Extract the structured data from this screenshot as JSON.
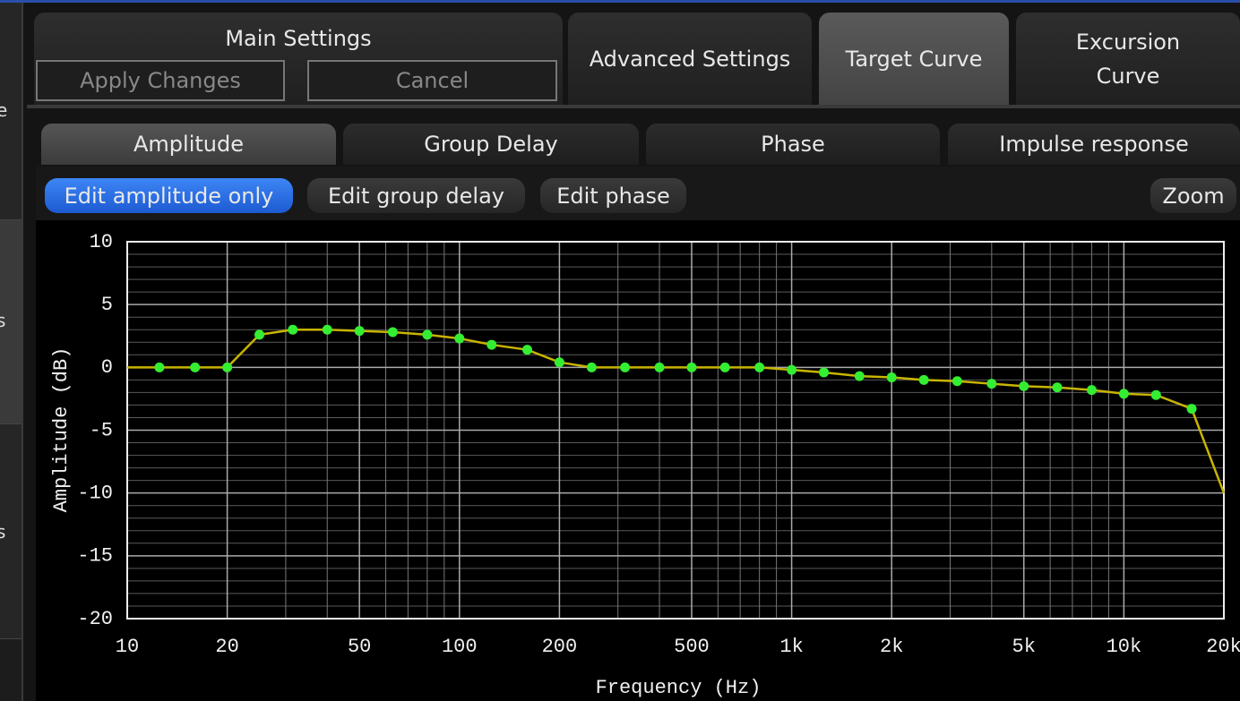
{
  "sidebar": {
    "labels": [
      "e",
      "s",
      "s"
    ]
  },
  "tabs": [
    {
      "label": "Main Settings",
      "buttons": [
        "Apply Changes",
        "Cancel"
      ]
    },
    {
      "label": "Advanced Settings"
    },
    {
      "label": "Target Curve",
      "active": true
    },
    {
      "label": "Excursion Curve"
    }
  ],
  "subtabs": [
    {
      "label": "Amplitude",
      "active": true
    },
    {
      "label": "Group Delay"
    },
    {
      "label": "Phase"
    },
    {
      "label": "Impulse response"
    }
  ],
  "toolbar": [
    {
      "label": "Edit amplitude only",
      "active": true
    },
    {
      "label": "Edit group delay"
    },
    {
      "label": "Edit phase"
    },
    {
      "label": "Zoom"
    }
  ],
  "chart_data": {
    "type": "line",
    "x_label": "Frequency (Hz)",
    "y_label": "Amplitude (dB)",
    "xscale": "log",
    "grid": true,
    "xlim": [
      10,
      20000
    ],
    "ylim": [
      -20,
      10
    ],
    "xticks": [
      10,
      20,
      50,
      100,
      200,
      500,
      {
        "value": 1000,
        "label": "1k"
      },
      {
        "value": 2000,
        "label": "2k"
      },
      {
        "value": 5000,
        "label": "5k"
      },
      {
        "value": 10000,
        "label": "10k"
      },
      {
        "value": 20000,
        "label": "20k"
      }
    ],
    "yticks": [
      -20,
      -15,
      -10,
      -5,
      0,
      5,
      10
    ],
    "xminorticks": [
      30,
      40,
      60,
      70,
      80,
      90,
      300,
      400,
      600,
      700,
      800,
      900,
      3000,
      4000,
      6000,
      7000,
      8000,
      9000
    ],
    "yminorticks": [
      -19,
      -18,
      -17,
      -16,
      -14,
      -13,
      -12,
      -11,
      -9,
      -8,
      -7,
      -6,
      -4,
      -3,
      -2,
      -1,
      1,
      2,
      3,
      4,
      6,
      7,
      8,
      9
    ],
    "series": [
      {
        "color": "#c8b400",
        "style": "line",
        "x": [
          10,
          12.5,
          16,
          20,
          25,
          31.5,
          40,
          50,
          63,
          80,
          100,
          125,
          160,
          200,
          250,
          315,
          400,
          500,
          630,
          800,
          1000,
          1250,
          1600,
          2000,
          2500,
          3150,
          4000,
          5000,
          6300,
          8000,
          10000,
          12500,
          16000,
          20000
        ],
        "values": [
          0,
          0,
          0,
          0,
          2.6,
          3.0,
          3.0,
          2.9,
          2.8,
          2.6,
          2.3,
          1.8,
          1.4,
          0.4,
          0,
          0,
          0,
          0,
          0,
          0,
          -0.2,
          -0.4,
          -0.7,
          -0.8,
          -1.0,
          -1.1,
          -1.3,
          -1.5,
          -1.6,
          -1.8,
          -2.1,
          -2.2,
          -3.3,
          -10
        ]
      },
      {
        "color": "#33ee33",
        "style": "markers",
        "x": [
          12.5,
          16,
          20,
          25,
          31.5,
          40,
          50,
          63,
          80,
          100,
          125,
          160,
          200,
          250,
          315,
          400,
          500,
          630,
          800,
          1000,
          1250,
          1600,
          2000,
          2500,
          3150,
          4000,
          5000,
          6300,
          8000,
          10000,
          12500,
          16000
        ],
        "values": [
          0,
          0,
          0,
          2.6,
          3.0,
          3.0,
          2.9,
          2.8,
          2.6,
          2.3,
          1.8,
          1.4,
          0.4,
          0,
          0,
          0,
          0,
          0,
          0,
          -0.2,
          -0.4,
          -0.7,
          -0.8,
          -1.0,
          -1.1,
          -1.3,
          -1.5,
          -1.6,
          -1.8,
          -2.1,
          -2.2,
          -3.3
        ]
      }
    ]
  }
}
